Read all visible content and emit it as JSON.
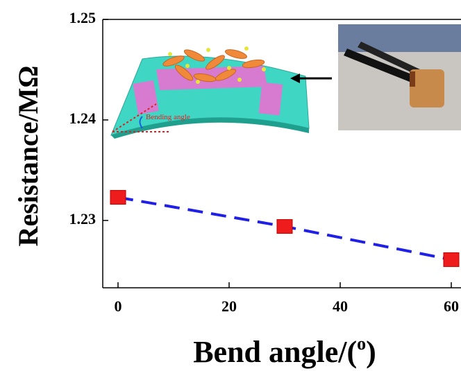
{
  "chart_data": {
    "type": "line",
    "ylabel": "Resistance/MΩ",
    "xlabel": {
      "text": "Bend angle/(",
      "superscript": "o",
      "close": ")"
    },
    "inset_label": "Bending angle",
    "x": [
      0,
      30,
      60
    ],
    "series": [
      {
        "values": [
          1.2323,
          1.2294,
          1.2261
        ],
        "marker_color": "#ee1c1c",
        "line_color": "#1f1fe6",
        "dashed": true
      }
    ],
    "xlim": [
      -2.75,
      61.75
    ],
    "xticks": [
      0,
      20,
      40,
      60
    ],
    "ylim": [
      1.2233,
      1.25
    ],
    "yticks": [
      1.23,
      1.24,
      1.25
    ]
  }
}
